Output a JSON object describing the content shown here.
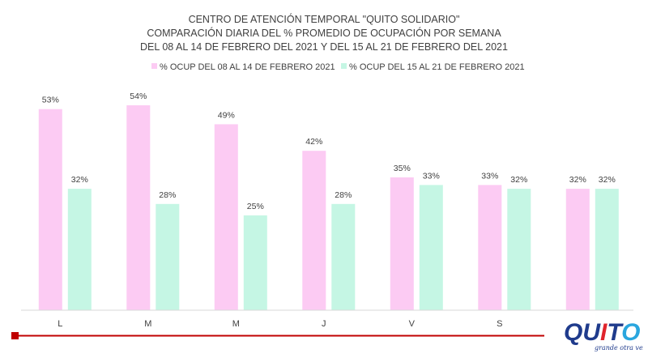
{
  "chart_data": {
    "type": "bar",
    "title": [
      "CENTRO DE ATENCIÓN TEMPORAL \"QUITO SOLIDARIO\"",
      "COMPARACIÓN  DIARIA DEL %  PROMEDIO DE OCUPACIÓN POR SEMANA",
      "DEL 08 AL 14 DE FEBRERO DEL 2021 Y DEL 15 AL 21 DE FEBRERO DEL 2021"
    ],
    "categories": [
      "L",
      "M",
      "M",
      "J",
      "V",
      "S",
      ""
    ],
    "series": [
      {
        "name": "% OCUP DEL 08 AL 14 DE FEBRERO 2021",
        "color": "#fccbf3",
        "values": [
          53,
          54,
          49,
          42,
          35,
          33,
          32
        ]
      },
      {
        "name": "% OCUP DEL 15 AL 21 DE FEBRERO 2021",
        "color": "#c5f6e4",
        "values": [
          32,
          28,
          25,
          28,
          33,
          32,
          32
        ]
      }
    ],
    "value_suffix": "%",
    "ylim": [
      0,
      54
    ],
    "legend": "top-center",
    "grid": false
  },
  "logo": {
    "word": "QUITO",
    "tagline": "grande otra vez",
    "colors": {
      "blue": "#1f3b8c",
      "red": "#e0242c",
      "cyan": "#2aa6de"
    }
  },
  "accent": {
    "footer_line": "#c00000"
  }
}
